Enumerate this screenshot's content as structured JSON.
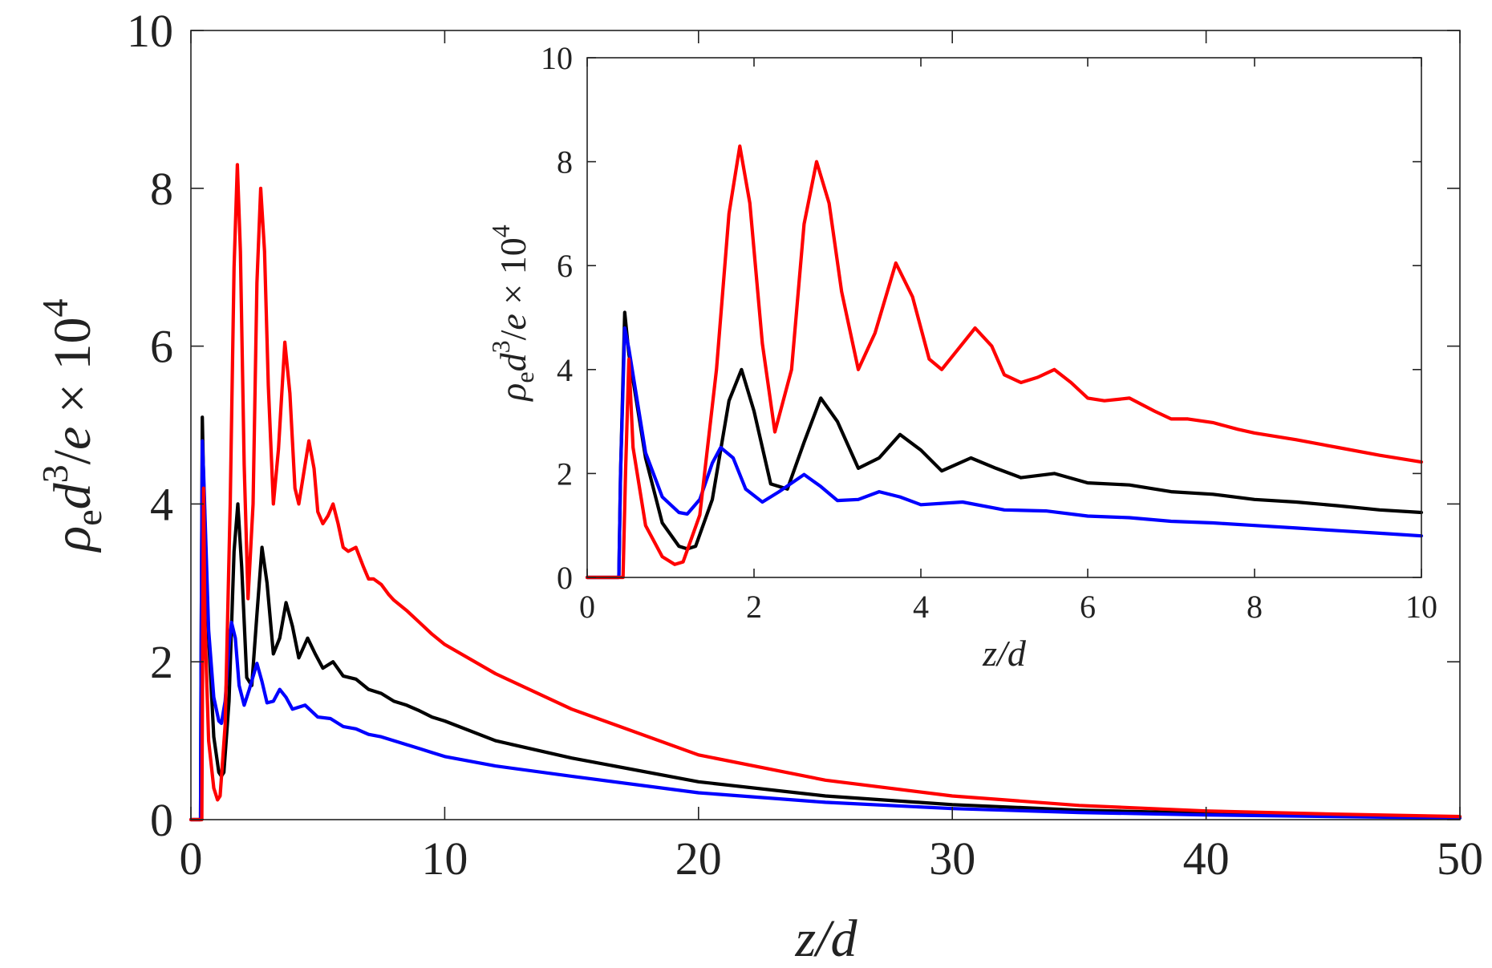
{
  "chart_data": [
    {
      "id": "main",
      "type": "line",
      "xlabel": "z/d",
      "ylabel_parts": {
        "rho": "ρ",
        "sub": "e",
        "d": "d",
        "sup3": "3",
        "slash": "/",
        "e": "e",
        "times": " × 10",
        "sup4": "4"
      },
      "xlim": [
        0,
        50
      ],
      "ylim": [
        0,
        10
      ],
      "xticks": [
        0,
        10,
        20,
        30,
        40,
        50
      ],
      "yticks": [
        0,
        2,
        4,
        6,
        8,
        10
      ],
      "xtick_labels": [
        "0",
        "10",
        "20",
        "30",
        "40",
        "50"
      ],
      "ytick_labels": [
        "0",
        "2",
        "4",
        "6",
        "8",
        "10"
      ],
      "grid": false,
      "series": [
        {
          "name": "black",
          "color": "#000000",
          "x": [
            0,
            0.38,
            0.4,
            0.45,
            0.5,
            0.7,
            0.9,
            1.1,
            1.2,
            1.3,
            1.5,
            1.7,
            1.85,
            2.0,
            2.2,
            2.4,
            2.6,
            2.8,
            3.0,
            3.25,
            3.5,
            3.75,
            4.0,
            4.25,
            4.6,
            4.9,
            5.2,
            5.6,
            6.0,
            6.5,
            7.0,
            7.5,
            8.0,
            8.5,
            9.0,
            9.5,
            10,
            12,
            15,
            20,
            25,
            30,
            35,
            40,
            45,
            50
          ],
          "y": [
            0,
            0,
            2.0,
            5.1,
            4.3,
            2.3,
            1.05,
            0.6,
            0.55,
            0.6,
            1.5,
            3.4,
            4.0,
            3.2,
            1.8,
            1.7,
            2.6,
            3.45,
            3.0,
            2.1,
            2.3,
            2.75,
            2.45,
            2.05,
            2.3,
            2.1,
            1.92,
            2.0,
            1.82,
            1.78,
            1.65,
            1.6,
            1.5,
            1.45,
            1.38,
            1.3,
            1.25,
            1.0,
            0.78,
            0.48,
            0.3,
            0.19,
            0.12,
            0.08,
            0.05,
            0.03
          ]
        },
        {
          "name": "blue",
          "color": "#0000ff",
          "x": [
            0,
            0.38,
            0.4,
            0.45,
            0.5,
            0.7,
            0.9,
            1.1,
            1.2,
            1.35,
            1.5,
            1.6,
            1.75,
            1.9,
            2.1,
            2.3,
            2.6,
            2.8,
            3.0,
            3.25,
            3.5,
            3.75,
            4.0,
            4.5,
            5.0,
            5.5,
            6.0,
            6.5,
            7.0,
            7.5,
            8.0,
            8.5,
            9.0,
            9.5,
            10,
            12,
            15,
            20,
            25,
            30,
            35,
            40,
            45,
            50
          ],
          "y": [
            0,
            0,
            2.0,
            4.8,
            4.4,
            2.4,
            1.55,
            1.25,
            1.22,
            1.5,
            2.2,
            2.5,
            2.3,
            1.7,
            1.45,
            1.65,
            1.98,
            1.75,
            1.48,
            1.5,
            1.65,
            1.55,
            1.4,
            1.45,
            1.3,
            1.28,
            1.18,
            1.15,
            1.08,
            1.05,
            1.0,
            0.95,
            0.9,
            0.85,
            0.8,
            0.68,
            0.55,
            0.34,
            0.22,
            0.14,
            0.09,
            0.06,
            0.04,
            0.02
          ]
        },
        {
          "name": "red",
          "color": "#ff0000",
          "x": [
            0,
            0.43,
            0.46,
            0.5,
            0.55,
            0.7,
            0.9,
            1.05,
            1.15,
            1.35,
            1.55,
            1.7,
            1.83,
            1.95,
            2.1,
            2.25,
            2.45,
            2.6,
            2.75,
            2.9,
            3.05,
            3.25,
            3.45,
            3.7,
            3.9,
            4.1,
            4.25,
            4.45,
            4.65,
            4.85,
            5.0,
            5.2,
            5.4,
            5.6,
            5.8,
            6.0,
            6.2,
            6.5,
            6.8,
            7.0,
            7.2,
            7.5,
            7.8,
            8.0,
            8.5,
            9.0,
            9.5,
            10,
            12,
            15,
            20,
            25,
            30,
            35,
            40,
            45,
            50
          ],
          "y": [
            0,
            0,
            2.0,
            4.2,
            2.5,
            1.0,
            0.4,
            0.25,
            0.3,
            1.2,
            4.0,
            7.0,
            8.3,
            7.2,
            4.5,
            2.8,
            4.0,
            6.8,
            8.0,
            7.2,
            5.5,
            4.0,
            4.7,
            6.05,
            5.4,
            4.2,
            4.0,
            4.4,
            4.8,
            4.45,
            3.9,
            3.75,
            3.85,
            4.0,
            3.75,
            3.45,
            3.4,
            3.45,
            3.2,
            3.05,
            3.05,
            2.98,
            2.85,
            2.78,
            2.65,
            2.5,
            2.35,
            2.22,
            1.85,
            1.4,
            0.82,
            0.5,
            0.3,
            0.18,
            0.11,
            0.07,
            0.04
          ]
        }
      ]
    },
    {
      "id": "inset",
      "type": "line",
      "xlabel": "z/d",
      "ylabel_parts": {
        "rho": "ρ",
        "sub": "e",
        "d": "d",
        "sup3": "3",
        "slash": "/",
        "e": "e",
        "times": " × 10",
        "sup4": "4"
      },
      "xlim": [
        0,
        10
      ],
      "ylim": [
        0,
        10
      ],
      "xticks": [
        0,
        2,
        4,
        6,
        8,
        10
      ],
      "yticks": [
        0,
        2,
        4,
        6,
        8,
        10
      ],
      "xtick_labels": [
        "0",
        "2",
        "4",
        "6",
        "8",
        "10"
      ],
      "ytick_labels": [
        "0",
        "2",
        "4",
        "6",
        "8",
        "10"
      ],
      "grid": false,
      "series_source": "main"
    }
  ]
}
